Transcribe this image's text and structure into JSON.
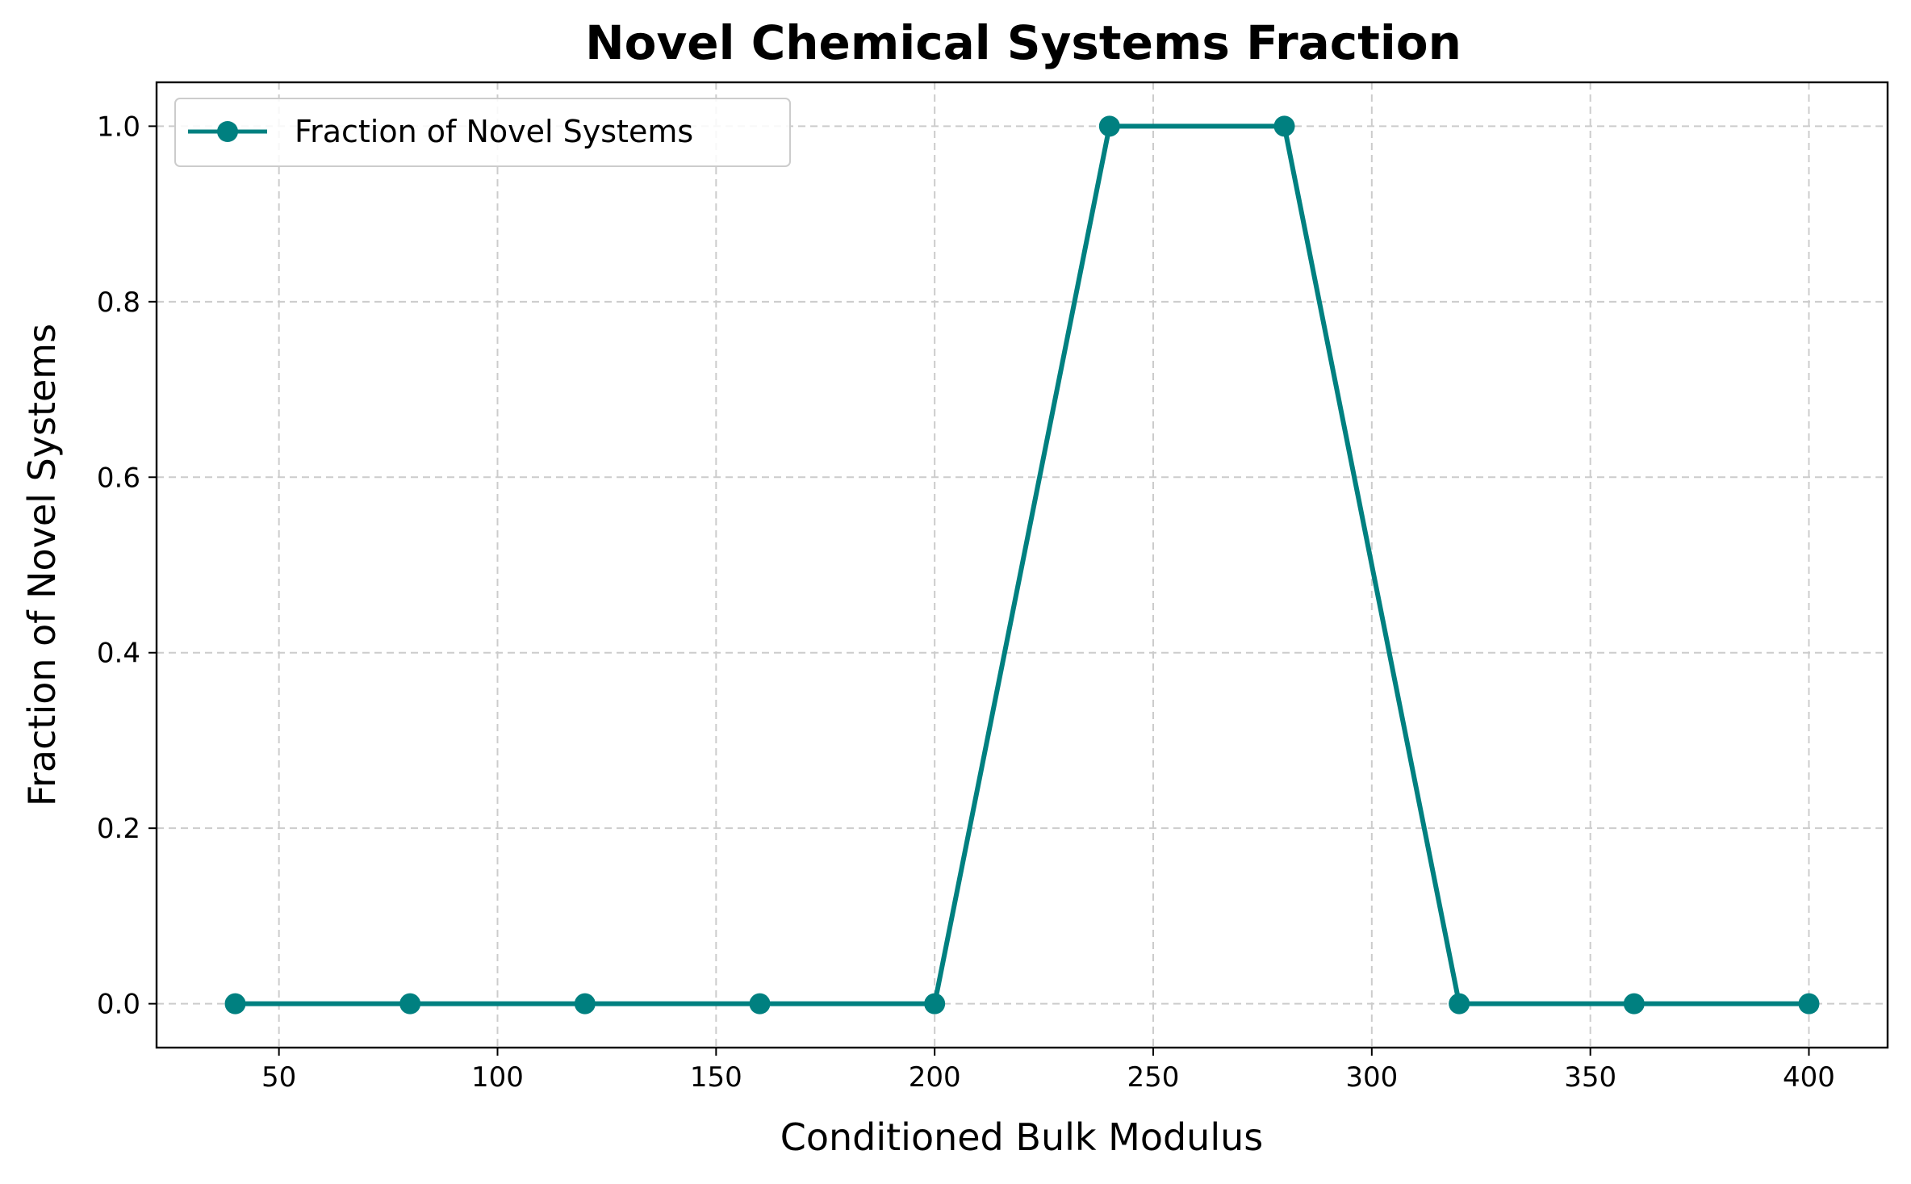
{
  "chart_data": {
    "type": "line",
    "title": "Novel Chemical Systems Fraction",
    "xlabel": "Conditioned Bulk Modulus",
    "ylabel": "Fraction of Novel Systems",
    "xlim": [
      22,
      418
    ],
    "ylim": [
      -0.05,
      1.05
    ],
    "xticks": [
      50,
      100,
      150,
      200,
      250,
      300,
      350,
      400
    ],
    "xtick_labels": [
      "50",
      "100",
      "150",
      "200",
      "250",
      "300",
      "350",
      "400"
    ],
    "yticks": [
      0.0,
      0.2,
      0.4,
      0.6,
      0.8,
      1.0
    ],
    "ytick_labels": [
      "0.0",
      "0.2",
      "0.4",
      "0.6",
      "0.8",
      "1.0"
    ],
    "grid": true,
    "legend_position": "top-left",
    "series": [
      {
        "name": "Fraction of Novel Systems",
        "color": "#008080",
        "marker": "circle",
        "x": [
          40,
          80,
          120,
          160,
          200,
          240,
          280,
          320,
          360,
          400
        ],
        "y": [
          0,
          0,
          0,
          0,
          0,
          1,
          1,
          0,
          0,
          0
        ]
      }
    ]
  }
}
